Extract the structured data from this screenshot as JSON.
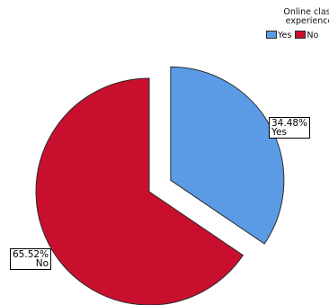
{
  "legend": {
    "title_line1": "Online class",
    "title_line2": "experience",
    "items": [
      {
        "label": "Yes",
        "color": "#5b9be6"
      },
      {
        "label": "No",
        "color": "#c8102e"
      }
    ]
  },
  "chart_data": {
    "type": "pie",
    "title": "",
    "legend_title": "Online class experience",
    "legend_position": "top-right",
    "exploded_slice": "Yes",
    "slices": [
      {
        "label": "Yes",
        "value": 34.48,
        "value_label": "34.48%",
        "color": "#5b9be6"
      },
      {
        "label": "No",
        "value": 65.52,
        "value_label": "65.52%",
        "color": "#c8102e"
      }
    ]
  }
}
